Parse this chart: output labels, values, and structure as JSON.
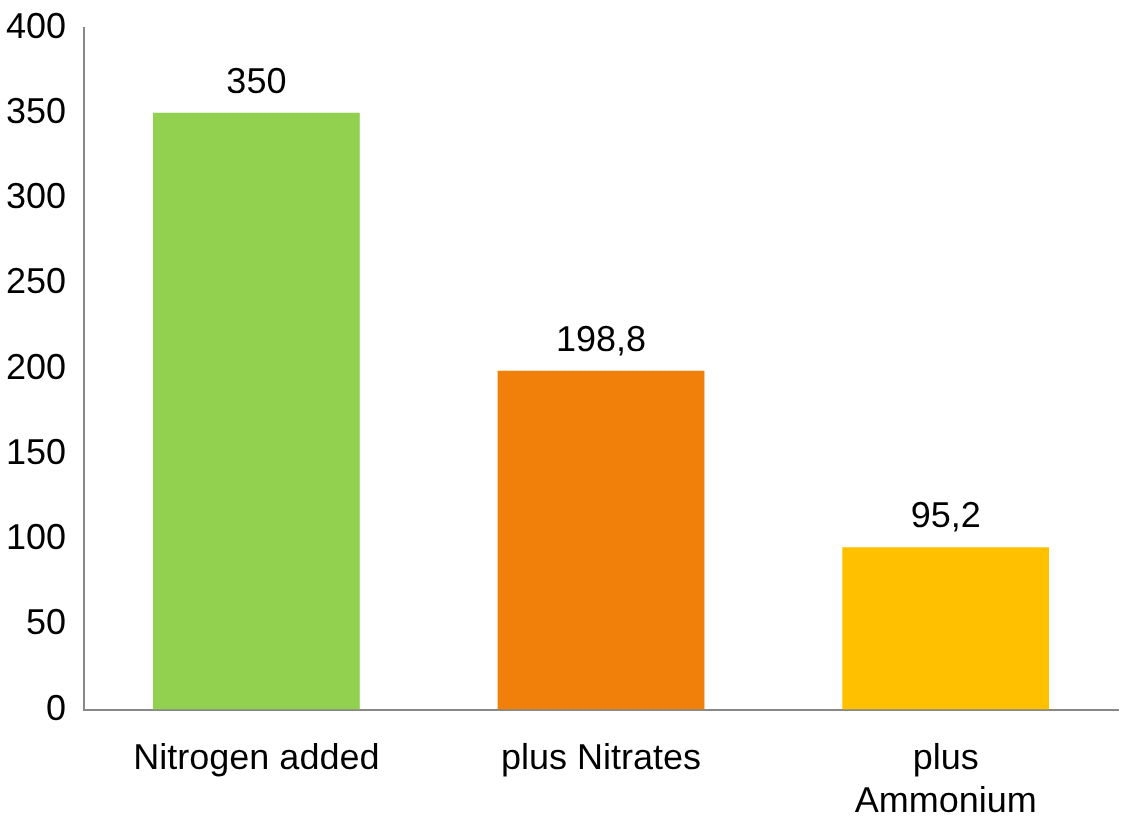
{
  "chart_data": {
    "type": "bar",
    "categories": [
      "Nitrogen added",
      "plus Nitrates",
      "plus Ammonium"
    ],
    "values": [
      350,
      198.8,
      95.2
    ],
    "colors": [
      "#92d050",
      "#f0800a",
      "#ffc000"
    ],
    "value_labels": [
      "350",
      "198,8",
      "95,2"
    ],
    "ylim": [
      0,
      400
    ],
    "yticks": [
      0,
      50,
      100,
      150,
      200,
      250,
      300,
      350,
      400
    ],
    "grid": false,
    "legend": false
  }
}
